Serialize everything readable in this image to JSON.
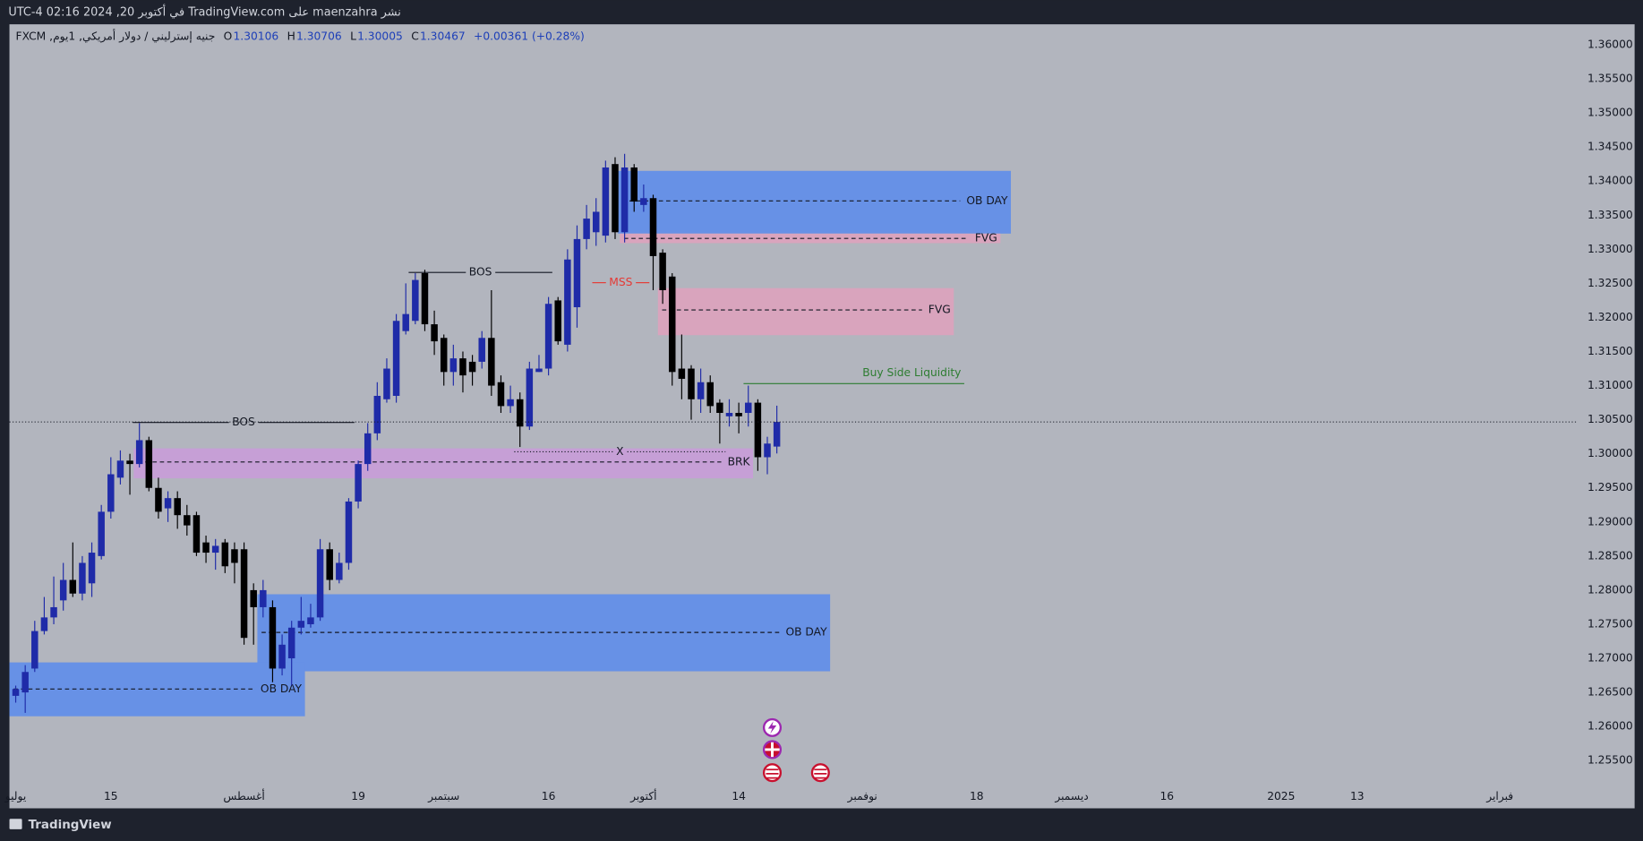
{
  "header": "نشر maenzahra على TradingView.com في أكتوبر 20, 2024 02:16 UTC-4",
  "footer_brand": "TradingView",
  "chart_data": {
    "type": "candlestick",
    "legend": {
      "symbol": "جنيه إسترليني / دولار أمريكي, 1يوم, FXCM",
      "keys": [
        "O",
        "H",
        "L",
        "C"
      ],
      "values": [
        "1.30106",
        "1.30706",
        "1.30005",
        "1.30467"
      ],
      "change": "+0.00361 (+0.28%)"
    },
    "up_color": "#1f2ba8",
    "down_color": "#000000",
    "xlim": [
      -0.66,
      164.1
    ],
    "ylim": [
      1.248,
      1.363
    ],
    "grid": false,
    "xticks": [
      {
        "value": 0,
        "label": "يوليو"
      },
      {
        "value": 10,
        "label": "15"
      },
      {
        "value": 24,
        "label": "أغسطس"
      },
      {
        "value": 36,
        "label": "19"
      },
      {
        "value": 45,
        "label": "سبتمبر"
      },
      {
        "value": 56,
        "label": "16"
      },
      {
        "value": 66,
        "label": "أكتوبر"
      },
      {
        "value": 76,
        "label": "14"
      },
      {
        "value": 89,
        "label": "نوفمبر"
      },
      {
        "value": 101,
        "label": "18"
      },
      {
        "value": 111,
        "label": "ديسمبر"
      },
      {
        "value": 121,
        "label": "16"
      },
      {
        "value": 133,
        "label": "2025"
      },
      {
        "value": 141,
        "label": "13"
      },
      {
        "value": 156,
        "label": "فبراير"
      }
    ],
    "yticks": [
      {
        "value": 1.255,
        "label": "1.25500"
      },
      {
        "value": 1.26,
        "label": "1.26000"
      },
      {
        "value": 1.265,
        "label": "1.26500"
      },
      {
        "value": 1.27,
        "label": "1.27000"
      },
      {
        "value": 1.275,
        "label": "1.27500"
      },
      {
        "value": 1.28,
        "label": "1.28000"
      },
      {
        "value": 1.285,
        "label": "1.28500"
      },
      {
        "value": 1.29,
        "label": "1.29000"
      },
      {
        "value": 1.295,
        "label": "1.29500"
      },
      {
        "value": 1.3,
        "label": "1.30000"
      },
      {
        "value": 1.305,
        "label": "1.30500"
      },
      {
        "value": 1.31,
        "label": "1.31000"
      },
      {
        "value": 1.315,
        "label": "1.31500"
      },
      {
        "value": 1.32,
        "label": "1.32000"
      },
      {
        "value": 1.325,
        "label": "1.32500"
      },
      {
        "value": 1.33,
        "label": "1.33000"
      },
      {
        "value": 1.335,
        "label": "1.33500"
      },
      {
        "value": 1.34,
        "label": "1.34000"
      },
      {
        "value": 1.345,
        "label": "1.34500"
      },
      {
        "value": 1.35,
        "label": "1.35000"
      },
      {
        "value": 1.355,
        "label": "1.35500"
      },
      {
        "value": 1.36,
        "label": "1.36000"
      }
    ],
    "x": [
      0,
      1,
      2,
      3,
      4,
      5,
      6,
      7,
      8,
      9,
      10,
      11,
      12,
      13,
      14,
      15,
      16,
      17,
      18,
      19,
      20,
      21,
      22,
      23,
      24,
      25,
      26,
      27,
      28,
      29,
      30,
      31,
      32,
      33,
      34,
      35,
      36,
      37,
      38,
      39,
      40,
      41,
      42,
      43,
      44,
      45,
      46,
      47,
      48,
      49,
      50,
      51,
      52,
      53,
      54,
      55,
      56,
      57,
      58,
      59,
      60,
      61,
      62,
      63,
      64,
      65,
      66,
      67,
      68,
      69,
      70,
      71,
      72,
      73,
      74,
      75,
      76,
      77,
      78,
      79,
      80
    ],
    "open": [
      1.2645,
      1.265,
      1.2685,
      1.274,
      1.276,
      1.2785,
      1.2815,
      1.2795,
      1.281,
      1.285,
      1.2915,
      1.2965,
      1.299,
      1.2985,
      1.302,
      1.295,
      1.292,
      1.2935,
      1.291,
      1.291,
      1.287,
      1.2855,
      1.287,
      1.286,
      1.286,
      1.28,
      1.2775,
      1.2775,
      1.2685,
      1.27,
      1.2745,
      1.275,
      1.276,
      1.286,
      1.2815,
      1.284,
      1.293,
      1.2985,
      1.303,
      1.308,
      1.3085,
      1.318,
      1.3195,
      1.3265,
      1.319,
      1.317,
      1.312,
      1.314,
      1.3135,
      1.3135,
      1.317,
      1.3105,
      1.307,
      1.308,
      1.304,
      1.312,
      1.3125,
      1.3225,
      1.316,
      1.3215,
      1.3315,
      1.3325,
      1.332,
      1.3425,
      1.3325,
      1.342,
      1.3365,
      1.3375,
      1.3295,
      1.326,
      1.3125,
      1.3125,
      1.308,
      1.3105,
      1.3075,
      1.3055,
      1.306,
      1.306,
      1.3075,
      1.2995,
      1.30106
    ],
    "high": [
      1.266,
      1.269,
      1.2755,
      1.279,
      1.282,
      1.284,
      1.287,
      1.285,
      1.287,
      1.2925,
      1.2995,
      1.3005,
      1.3,
      1.3045,
      1.3025,
      1.2965,
      1.2945,
      1.2945,
      1.2925,
      1.2915,
      1.288,
      1.2875,
      1.2875,
      1.287,
      1.287,
      1.281,
      1.2815,
      1.2785,
      1.2735,
      1.2755,
      1.279,
      1.278,
      1.2875,
      1.287,
      1.2855,
      1.2935,
      1.299,
      1.3045,
      1.3105,
      1.314,
      1.3205,
      1.325,
      1.3265,
      1.327,
      1.321,
      1.3175,
      1.316,
      1.315,
      1.3145,
      1.318,
      1.324,
      1.3115,
      1.31,
      1.309,
      1.3135,
      1.3145,
      1.323,
      1.323,
      1.33,
      1.3335,
      1.3365,
      1.3375,
      1.343,
      1.3435,
      1.344,
      1.3425,
      1.3395,
      1.338,
      1.33,
      1.3265,
      1.3175,
      1.313,
      1.3125,
      1.3115,
      1.308,
      1.308,
      1.3075,
      1.31,
      1.308,
      1.3025,
      1.30706
    ],
    "low": [
      1.2635,
      1.262,
      1.268,
      1.2735,
      1.275,
      1.277,
      1.279,
      1.2785,
      1.279,
      1.2845,
      1.2905,
      1.2955,
      1.294,
      1.298,
      1.2945,
      1.2905,
      1.29,
      1.289,
      1.288,
      1.285,
      1.284,
      1.283,
      1.2825,
      1.281,
      1.272,
      1.272,
      1.276,
      1.2665,
      1.2675,
      1.266,
      1.2735,
      1.2745,
      1.2755,
      1.28,
      1.281,
      1.283,
      1.292,
      1.2975,
      1.302,
      1.3075,
      1.3075,
      1.3175,
      1.319,
      1.318,
      1.3145,
      1.31,
      1.31,
      1.309,
      1.31,
      1.3125,
      1.3085,
      1.306,
      1.306,
      1.301,
      1.3035,
      1.312,
      1.3115,
      1.316,
      1.315,
      1.3185,
      1.33,
      1.3305,
      1.331,
      1.3315,
      1.331,
      1.3355,
      1.3355,
      1.324,
      1.322,
      1.31,
      1.308,
      1.305,
      1.306,
      1.306,
      1.3015,
      1.304,
      1.303,
      1.304,
      1.2975,
      1.297,
      1.30005
    ],
    "close": [
      1.2655,
      1.268,
      1.274,
      1.276,
      1.2775,
      1.2815,
      1.2795,
      1.284,
      1.2855,
      1.2915,
      1.297,
      1.299,
      1.2985,
      1.302,
      1.295,
      1.2915,
      1.2935,
      1.291,
      1.2895,
      1.2855,
      1.2855,
      1.2865,
      1.2835,
      1.284,
      1.273,
      1.2775,
      1.28,
      1.2685,
      1.272,
      1.2745,
      1.2755,
      1.276,
      1.286,
      1.2815,
      1.284,
      1.293,
      1.2985,
      1.303,
      1.3085,
      1.3125,
      1.3195,
      1.3205,
      1.3255,
      1.319,
      1.3165,
      1.312,
      1.314,
      1.3115,
      1.312,
      1.317,
      1.31,
      1.307,
      1.308,
      1.304,
      1.3125,
      1.3125,
      1.322,
      1.3165,
      1.3285,
      1.3315,
      1.3345,
      1.3355,
      1.342,
      1.3325,
      1.342,
      1.337,
      1.3375,
      1.329,
      1.324,
      1.312,
      1.311,
      1.308,
      1.3105,
      1.307,
      1.306,
      1.306,
      1.3055,
      1.3075,
      1.2995,
      1.3015,
      1.30467
    ],
    "zones": [
      {
        "label": "OB DAY",
        "x0": 63.3,
        "x1": 104.6,
        "top": 1.3415,
        "bottom": 1.3323,
        "mid": 1.3371,
        "color": "#6791e6"
      },
      {
        "label": "FVG",
        "x0": 63.5,
        "x1": 103.5,
        "top": 1.3323,
        "bottom": 1.3309,
        "mid": 1.3316,
        "color": "#d9a4bd"
      },
      {
        "label": "FVG",
        "x0": 67.5,
        "x1": 98.6,
        "top": 1.3243,
        "bottom": 1.3174,
        "mid": 1.3211,
        "color": "#d9a4bd"
      },
      {
        "label": "BRK",
        "x0": 12.4,
        "x1": 77.5,
        "top": 1.3008,
        "bottom": 1.2964,
        "mid": 1.2988,
        "color": "#c69fd6"
      },
      {
        "label": "OB DAY",
        "x0": 25.4,
        "x1": 85.6,
        "top": 1.2794,
        "bottom": 1.2681,
        "mid": 1.2738,
        "color": "#6791e6"
      },
      {
        "label": "OB DAY",
        "x0": -0.66,
        "x1": 30.4,
        "top": 1.2694,
        "bottom": 1.2615,
        "mid": 1.2655,
        "color": "#6791e6"
      }
    ],
    "lines": [
      {
        "label": "BOS",
        "x0": 41.3,
        "x1": 56.4,
        "price": 1.3266,
        "color": "#131722",
        "style": "solid",
        "label_pos": "center"
      },
      {
        "label": "BOS",
        "x0": 12.3,
        "x1": 35.6,
        "price": 1.3046,
        "color": "#131722",
        "style": "solid",
        "label_pos": "center"
      },
      {
        "label": "MSS",
        "x0": 60.6,
        "x1": 66.6,
        "price": 1.3251,
        "color": "#e53935",
        "style": "solid",
        "label_pos": "center"
      },
      {
        "label": "X",
        "x0": 52.4,
        "x1": 74.6,
        "price": 1.3003,
        "color": "#131722",
        "style": "dotted",
        "label_pos": "center"
      },
      {
        "label": "Buy Side Liquidity",
        "x0": 76.5,
        "x1": 99.7,
        "price": 1.3103,
        "color": "#2e7d32",
        "style": "solid",
        "label_pos": "above"
      }
    ]
  }
}
